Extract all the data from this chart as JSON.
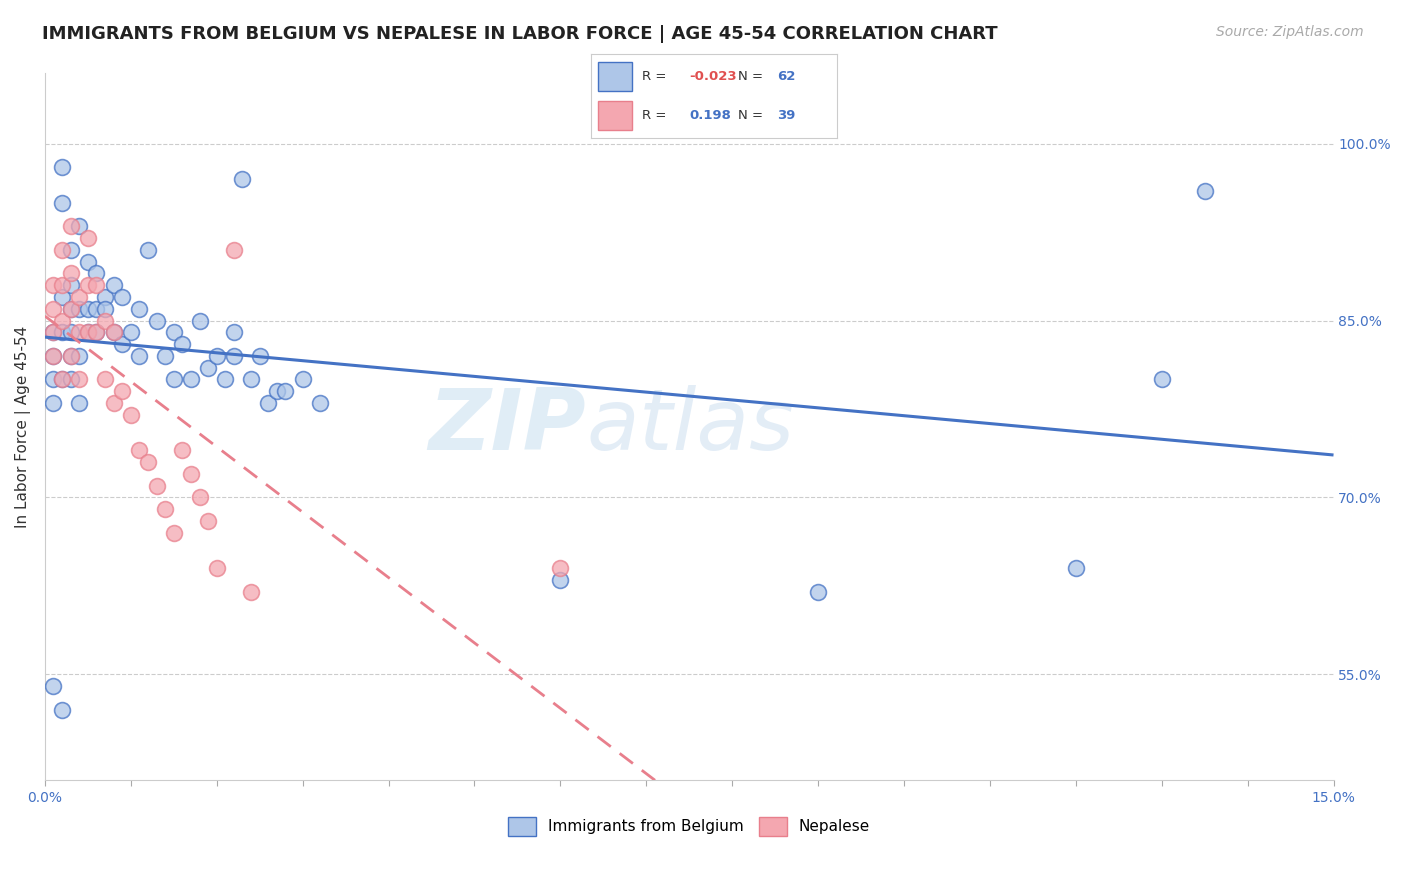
{
  "title": "IMMIGRANTS FROM BELGIUM VS NEPALESE IN LABOR FORCE | AGE 45-54 CORRELATION CHART",
  "source": "Source: ZipAtlas.com",
  "ylabel": "In Labor Force | Age 45-54",
  "xlim": [
    0.0,
    0.15
  ],
  "ylim": [
    0.46,
    1.06
  ],
  "ytick_positions_right": [
    1.0,
    0.85,
    0.7,
    0.55
  ],
  "ytick_labels_right": [
    "100.0%",
    "85.0%",
    "70.0%",
    "55.0%"
  ],
  "grid_color": "#cccccc",
  "background_color": "#ffffff",
  "watermark_zip": "ZIP",
  "watermark_atlas": "atlas",
  "legend": {
    "blue_r": "-0.023",
    "blue_n": "62",
    "pink_r": "0.198",
    "pink_n": "39",
    "blue_fill": "#aec6e8",
    "pink_fill": "#f4a7b0",
    "blue_edge": "#4472c4",
    "pink_edge": "#e87f8c",
    "blue_line_color": "#4472c4",
    "pink_line_color": "#e87f8c",
    "r_negative_color": "#e05050",
    "r_positive_color": "#4472c4",
    "n_color": "#4472c4"
  },
  "blue_x": [
    0.001,
    0.001,
    0.001,
    0.001,
    0.001,
    0.002,
    0.002,
    0.002,
    0.002,
    0.002,
    0.002,
    0.003,
    0.003,
    0.003,
    0.003,
    0.003,
    0.003,
    0.004,
    0.004,
    0.004,
    0.004,
    0.005,
    0.005,
    0.005,
    0.006,
    0.006,
    0.006,
    0.007,
    0.007,
    0.008,
    0.008,
    0.009,
    0.009,
    0.01,
    0.011,
    0.011,
    0.012,
    0.013,
    0.014,
    0.015,
    0.015,
    0.016,
    0.017,
    0.018,
    0.019,
    0.02,
    0.021,
    0.022,
    0.022,
    0.023,
    0.024,
    0.025,
    0.026,
    0.027,
    0.028,
    0.03,
    0.032,
    0.06,
    0.09,
    0.12,
    0.13,
    0.135
  ],
  "blue_y": [
    0.84,
    0.82,
    0.8,
    0.78,
    0.54,
    0.98,
    0.95,
    0.87,
    0.84,
    0.8,
    0.52,
    0.91,
    0.88,
    0.86,
    0.84,
    0.82,
    0.8,
    0.93,
    0.86,
    0.82,
    0.78,
    0.9,
    0.86,
    0.84,
    0.89,
    0.86,
    0.84,
    0.87,
    0.86,
    0.88,
    0.84,
    0.87,
    0.83,
    0.84,
    0.86,
    0.82,
    0.91,
    0.85,
    0.82,
    0.84,
    0.8,
    0.83,
    0.8,
    0.85,
    0.81,
    0.82,
    0.8,
    0.84,
    0.82,
    0.97,
    0.8,
    0.82,
    0.78,
    0.79,
    0.79,
    0.8,
    0.78,
    0.63,
    0.62,
    0.64,
    0.8,
    0.96
  ],
  "pink_x": [
    0.001,
    0.001,
    0.001,
    0.001,
    0.002,
    0.002,
    0.002,
    0.002,
    0.003,
    0.003,
    0.003,
    0.003,
    0.004,
    0.004,
    0.004,
    0.005,
    0.005,
    0.005,
    0.006,
    0.006,
    0.007,
    0.007,
    0.008,
    0.008,
    0.009,
    0.01,
    0.011,
    0.012,
    0.013,
    0.014,
    0.015,
    0.016,
    0.017,
    0.018,
    0.019,
    0.02,
    0.022,
    0.06,
    0.024
  ],
  "pink_y": [
    0.88,
    0.86,
    0.84,
    0.82,
    0.91,
    0.88,
    0.85,
    0.8,
    0.93,
    0.89,
    0.86,
    0.82,
    0.87,
    0.84,
    0.8,
    0.92,
    0.88,
    0.84,
    0.88,
    0.84,
    0.85,
    0.8,
    0.84,
    0.78,
    0.79,
    0.77,
    0.74,
    0.73,
    0.71,
    0.69,
    0.67,
    0.74,
    0.72,
    0.7,
    0.68,
    0.64,
    0.91,
    0.64,
    0.62
  ],
  "title_fontsize": 13,
  "ylabel_fontsize": 11,
  "tick_fontsize": 10,
  "source_fontsize": 10
}
